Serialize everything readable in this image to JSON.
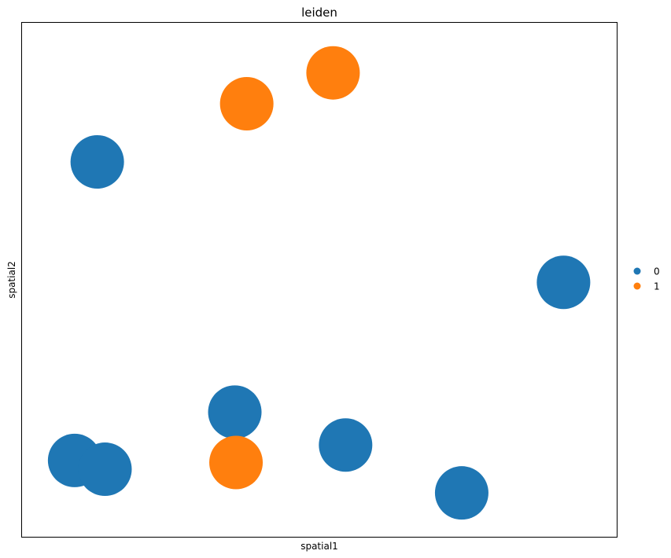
{
  "chart_data": {
    "type": "scatter",
    "title": "leiden",
    "xlabel": "spatial1",
    "ylabel": "spatial2",
    "grid": false,
    "legend_position": "right",
    "xlim": [
      0,
      100
    ],
    "ylim": [
      0,
      100
    ],
    "series": [
      {
        "name": "0",
        "color": "#1f77b4",
        "points": [
          {
            "x": 12.7,
            "y": 72.9
          },
          {
            "x": 91.0,
            "y": 49.5
          },
          {
            "x": 35.8,
            "y": 24.3
          },
          {
            "x": 8.9,
            "y": 14.9
          },
          {
            "x": 14.0,
            "y": 13.2
          },
          {
            "x": 54.4,
            "y": 17.9
          },
          {
            "x": 73.9,
            "y": 8.6
          }
        ]
      },
      {
        "name": "1",
        "color": "#ff7f0e",
        "points": [
          {
            "x": 37.8,
            "y": 84.2
          },
          {
            "x": 52.3,
            "y": 90.2
          },
          {
            "x": 36.0,
            "y": 14.5
          }
        ]
      }
    ]
  }
}
